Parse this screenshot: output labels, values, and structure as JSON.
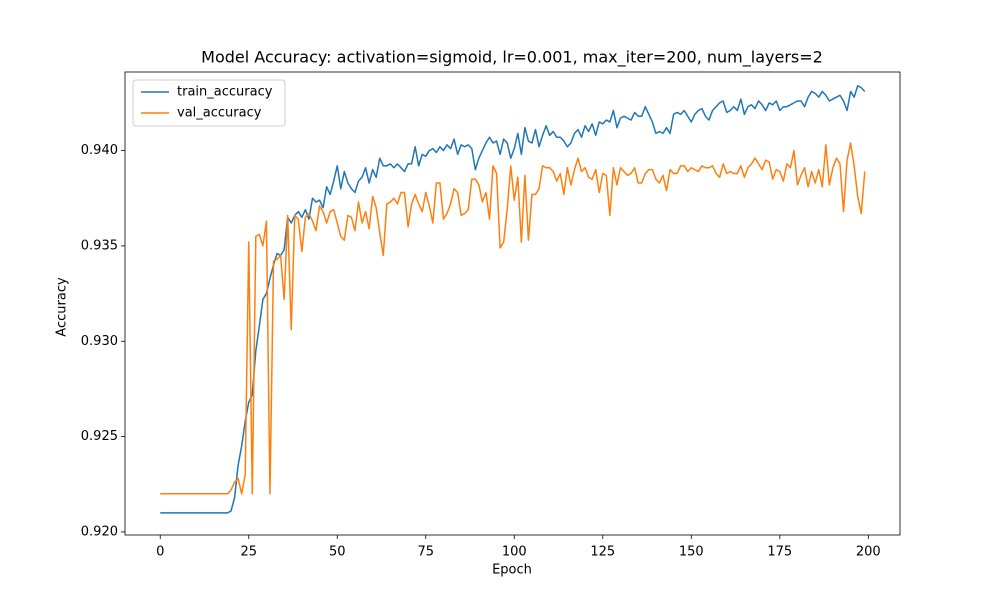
{
  "chart_data": {
    "type": "line",
    "title": "Model Accuracy: activation=sigmoid, lr=0.001, max_iter=200, num_layers=2",
    "x_label": "Epoch",
    "y_label": "Accuracy",
    "x": [
      0,
      1,
      2,
      3,
      4,
      5,
      6,
      7,
      8,
      9,
      10,
      11,
      12,
      13,
      14,
      15,
      16,
      17,
      18,
      19,
      20,
      21,
      22,
      23,
      24,
      25,
      26,
      27,
      28,
      29,
      30,
      31,
      32,
      33,
      34,
      35,
      36,
      37,
      38,
      39,
      40,
      41,
      42,
      43,
      44,
      45,
      46,
      47,
      48,
      49,
      50,
      51,
      52,
      53,
      54,
      55,
      56,
      57,
      58,
      59,
      60,
      61,
      62,
      63,
      64,
      65,
      66,
      67,
      68,
      69,
      70,
      71,
      72,
      73,
      74,
      75,
      76,
      77,
      78,
      79,
      80,
      81,
      82,
      83,
      84,
      85,
      86,
      87,
      88,
      89,
      90,
      91,
      92,
      93,
      94,
      95,
      96,
      97,
      98,
      99,
      100,
      101,
      102,
      103,
      104,
      105,
      106,
      107,
      108,
      109,
      110,
      111,
      112,
      113,
      114,
      115,
      116,
      117,
      118,
      119,
      120,
      121,
      122,
      123,
      124,
      125,
      126,
      127,
      128,
      129,
      130,
      131,
      132,
      133,
      134,
      135,
      136,
      137,
      138,
      139,
      140,
      141,
      142,
      143,
      144,
      145,
      146,
      147,
      148,
      149,
      150,
      151,
      152,
      153,
      154,
      155,
      156,
      157,
      158,
      159,
      160,
      161,
      162,
      163,
      164,
      165,
      166,
      167,
      168,
      169,
      170,
      171,
      172,
      173,
      174,
      175,
      176,
      177,
      178,
      179,
      180,
      181,
      182,
      183,
      184,
      185,
      186,
      187,
      188,
      189,
      190,
      191,
      192,
      193,
      194,
      195,
      196,
      197,
      198,
      199
    ],
    "series": [
      {
        "name": "train_accuracy",
        "color": "#1f77b4",
        "values": [
          0.921,
          0.921,
          0.921,
          0.921,
          0.921,
          0.921,
          0.921,
          0.921,
          0.921,
          0.921,
          0.921,
          0.921,
          0.921,
          0.921,
          0.921,
          0.921,
          0.921,
          0.921,
          0.921,
          0.921,
          0.9211,
          0.9218,
          0.9235,
          0.9245,
          0.9258,
          0.9268,
          0.9272,
          0.9295,
          0.9308,
          0.9322,
          0.9325,
          0.9333,
          0.934,
          0.9346,
          0.9345,
          0.9348,
          0.9365,
          0.9362,
          0.9366,
          0.9368,
          0.9365,
          0.9369,
          0.9364,
          0.9375,
          0.9373,
          0.9374,
          0.937,
          0.9381,
          0.9377,
          0.9384,
          0.9392,
          0.938,
          0.9389,
          0.9383,
          0.938,
          0.9378,
          0.9384,
          0.9386,
          0.9391,
          0.9383,
          0.939,
          0.9386,
          0.9396,
          0.9392,
          0.9392,
          0.9393,
          0.9391,
          0.9393,
          0.9391,
          0.9389,
          0.9393,
          0.9393,
          0.9402,
          0.9392,
          0.9398,
          0.9397,
          0.94,
          0.9401,
          0.9399,
          0.9402,
          0.94,
          0.9403,
          0.9401,
          0.9406,
          0.9398,
          0.9403,
          0.9402,
          0.9403,
          0.9401,
          0.939,
          0.9396,
          0.94,
          0.9404,
          0.9407,
          0.9404,
          0.9405,
          0.9398,
          0.9406,
          0.9404,
          0.9396,
          0.9401,
          0.9409,
          0.9398,
          0.9412,
          0.9405,
          0.9404,
          0.9411,
          0.9402,
          0.9408,
          0.9413,
          0.9408,
          0.941,
          0.9407,
          0.9407,
          0.9405,
          0.9402,
          0.9404,
          0.9409,
          0.9411,
          0.9407,
          0.9413,
          0.941,
          0.9414,
          0.9408,
          0.9415,
          0.9414,
          0.9416,
          0.9415,
          0.9421,
          0.9412,
          0.9417,
          0.9418,
          0.9417,
          0.9416,
          0.942,
          0.9418,
          0.9418,
          0.9423,
          0.9419,
          0.9415,
          0.9409,
          0.941,
          0.9409,
          0.9412,
          0.9409,
          0.9419,
          0.942,
          0.9419,
          0.9421,
          0.9418,
          0.9415,
          0.9419,
          0.9421,
          0.9422,
          0.9418,
          0.9416,
          0.9421,
          0.9423,
          0.9425,
          0.9426,
          0.942,
          0.9421,
          0.9423,
          0.9421,
          0.9427,
          0.9419,
          0.9423,
          0.9424,
          0.9422,
          0.9426,
          0.9424,
          0.9421,
          0.9425,
          0.9424,
          0.9426,
          0.9421,
          0.9423,
          0.9423,
          0.9424,
          0.9425,
          0.9426,
          0.9426,
          0.9423,
          0.9428,
          0.9431,
          0.943,
          0.9428,
          0.9431,
          0.9429,
          0.9426,
          0.9427,
          0.9428,
          0.9429,
          0.9426,
          0.9421,
          0.9431,
          0.9428,
          0.9434,
          0.9433,
          0.9431
        ]
      },
      {
        "name": "val_accuracy",
        "color": "#ff7f0e",
        "values": [
          0.922,
          0.922,
          0.922,
          0.922,
          0.922,
          0.922,
          0.922,
          0.922,
          0.922,
          0.922,
          0.922,
          0.922,
          0.922,
          0.922,
          0.922,
          0.922,
          0.922,
          0.922,
          0.922,
          0.922,
          0.9222,
          0.9226,
          0.9228,
          0.922,
          0.923,
          0.9352,
          0.922,
          0.9355,
          0.9356,
          0.935,
          0.9363,
          0.922,
          0.9342,
          0.9343,
          0.9345,
          0.9322,
          0.9366,
          0.9306,
          0.9366,
          0.9364,
          0.9347,
          0.9365,
          0.9367,
          0.9363,
          0.9358,
          0.9371,
          0.9368,
          0.9362,
          0.9368,
          0.9369,
          0.9362,
          0.9355,
          0.9353,
          0.9366,
          0.9365,
          0.9358,
          0.9373,
          0.9362,
          0.9368,
          0.9359,
          0.9376,
          0.937,
          0.9357,
          0.9345,
          0.9372,
          0.9373,
          0.9375,
          0.9372,
          0.9378,
          0.9378,
          0.936,
          0.9372,
          0.9377,
          0.9372,
          0.9368,
          0.9378,
          0.9371,
          0.9362,
          0.9383,
          0.9383,
          0.9364,
          0.9367,
          0.9372,
          0.938,
          0.9378,
          0.9366,
          0.9367,
          0.9369,
          0.9385,
          0.9385,
          0.9382,
          0.9373,
          0.9378,
          0.9364,
          0.9392,
          0.9388,
          0.9349,
          0.9352,
          0.9369,
          0.9392,
          0.9374,
          0.9386,
          0.9352,
          0.9387,
          0.9353,
          0.9377,
          0.9377,
          0.938,
          0.9392,
          0.9391,
          0.9391,
          0.9389,
          0.9384,
          0.9388,
          0.9377,
          0.9391,
          0.9382,
          0.939,
          0.9396,
          0.9389,
          0.9391,
          0.9386,
          0.9385,
          0.939,
          0.9378,
          0.9388,
          0.9387,
          0.9366,
          0.9391,
          0.9382,
          0.9391,
          0.9389,
          0.9387,
          0.9388,
          0.9391,
          0.9383,
          0.9383,
          0.9388,
          0.939,
          0.939,
          0.9385,
          0.9383,
          0.9387,
          0.9379,
          0.939,
          0.9388,
          0.9388,
          0.9392,
          0.9392,
          0.9389,
          0.9391,
          0.939,
          0.9389,
          0.9392,
          0.9391,
          0.9391,
          0.9392,
          0.9388,
          0.9386,
          0.9393,
          0.9388,
          0.9389,
          0.9388,
          0.9388,
          0.9392,
          0.9386,
          0.9391,
          0.9393,
          0.9396,
          0.9393,
          0.939,
          0.9395,
          0.9394,
          0.9385,
          0.939,
          0.9389,
          0.9384,
          0.9393,
          0.9391,
          0.94,
          0.9382,
          0.9387,
          0.9391,
          0.9381,
          0.9389,
          0.9383,
          0.939,
          0.9381,
          0.9403,
          0.9382,
          0.9391,
          0.9396,
          0.9393,
          0.9368,
          0.9395,
          0.9404,
          0.9392,
          0.9376,
          0.9367,
          0.9389
        ]
      }
    ],
    "xlim": [
      -9.95,
      208.95
    ],
    "ylim": [
      0.91984,
      0.94412
    ],
    "xticks": [
      0,
      25,
      50,
      75,
      100,
      125,
      150,
      175,
      200
    ],
    "yticks": [
      {
        "value": 0.92,
        "label": "0.920"
      },
      0.925,
      {
        "value": 0.93,
        "label": "0.930"
      },
      0.935,
      {
        "value": 0.94,
        "label": "0.940"
      }
    ],
    "grid": false,
    "legend": "upper left"
  }
}
